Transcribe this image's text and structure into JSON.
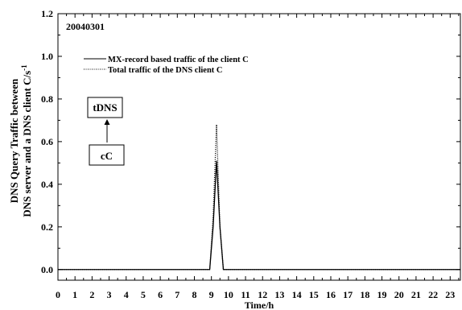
{
  "chart_data": {
    "type": "line",
    "date_label": "20040301",
    "xlabel": "Time/h",
    "ylabel_line1": "DNS Query Traffic between",
    "ylabel_line2": "DNS server and a DNS client C/s",
    "ylabel_sup": "-1",
    "xlim": [
      0,
      23.6
    ],
    "ylim": [
      -0.05,
      1.2
    ],
    "x_ticks": [
      0,
      1,
      2,
      3,
      4,
      5,
      6,
      7,
      8,
      9,
      10,
      11,
      12,
      13,
      14,
      15,
      16,
      17,
      18,
      19,
      20,
      21,
      22,
      23
    ],
    "y_ticks": [
      0.0,
      0.2,
      0.4,
      0.6,
      0.8,
      1.0,
      1.2
    ],
    "y_tick_labels": [
      "0.0",
      "0.2",
      "0.4",
      "0.6",
      "0.8",
      "1.0",
      "1.2"
    ],
    "series": [
      {
        "name": "MX-record based traffic of the client C",
        "style": "solid",
        "x": [
          0,
          8.9,
          9.1,
          9.3,
          9.5,
          9.7,
          23.6
        ],
        "y": [
          0,
          0,
          0.2,
          0.51,
          0.2,
          0,
          0
        ]
      },
      {
        "name": "Total traffic of the DNS client C",
        "style": "dotted",
        "x": [
          0,
          8.9,
          9.1,
          9.3,
          9.5,
          9.7,
          23.6
        ],
        "y": [
          0,
          0,
          0.25,
          0.68,
          0.2,
          0,
          0
        ]
      }
    ],
    "annotation": {
      "top_box": "tDNS",
      "bottom_box": "cC"
    },
    "grid": false,
    "legend": "top-left",
    "colors": {
      "line": "#000000",
      "background": "#ffffff"
    }
  }
}
